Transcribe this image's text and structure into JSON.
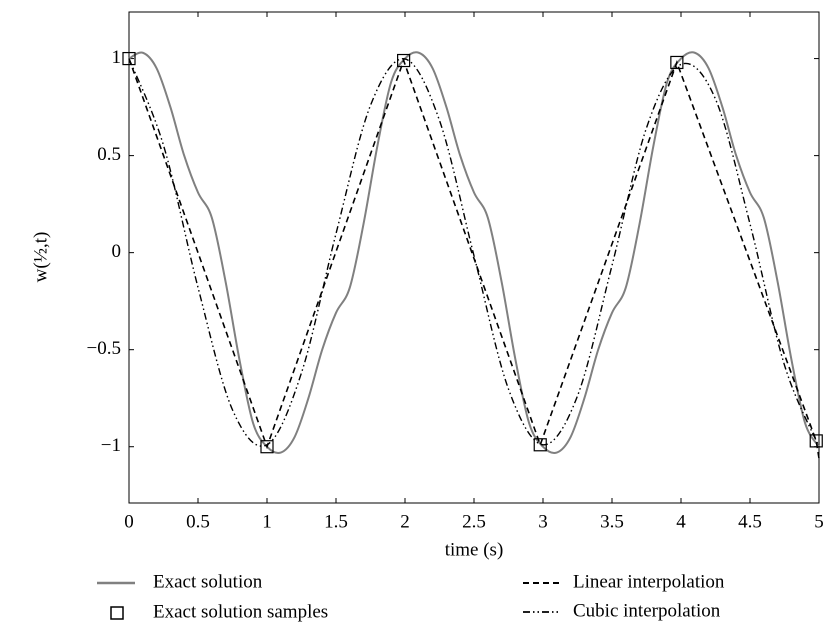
{
  "chart_data": {
    "type": "line",
    "x_label": "time (s)",
    "y_label": "w(½,t)",
    "xlim": [
      0,
      5
    ],
    "ylim": [
      -1.29,
      1.24
    ],
    "xticks": [
      0,
      0.5,
      1,
      1.5,
      2,
      2.5,
      3,
      3.5,
      4,
      4.5,
      5
    ],
    "yticks": [
      {
        "value": -1,
        "label": "−1"
      },
      {
        "value": -0.5,
        "label": "−0.5"
      },
      0,
      0.5,
      1
    ],
    "series": [
      {
        "name": "Exact solution",
        "color": "#808080",
        "style": "solid",
        "x": [
          0,
          0.1,
          0.2,
          0.3,
          0.4,
          0.5,
          0.6,
          0.7,
          0.8,
          0.9,
          1,
          1.1,
          1.2,
          1.3,
          1.4,
          1.5,
          1.6,
          1.7,
          1.8,
          1.9,
          2,
          2.1,
          2.2,
          2.3,
          2.4,
          2.5,
          2.6,
          2.7,
          2.8,
          2.9,
          3,
          3.1,
          3.2,
          3.3,
          3.4,
          3.5,
          3.6,
          3.7,
          3.8,
          3.9,
          4,
          4.1,
          4.2,
          4.3,
          4.4,
          4.5,
          4.6,
          4.7,
          4.8,
          4.9,
          5
        ],
        "values": [
          1.0,
          1.03,
          0.95,
          0.75,
          0.5,
          0.31,
          0.18,
          -0.15,
          -0.55,
          -0.88,
          -1.0,
          -1.03,
          -0.95,
          -0.75,
          -0.5,
          -0.31,
          -0.18,
          0.15,
          0.55,
          0.88,
          1.0,
          1.03,
          0.95,
          0.75,
          0.5,
          0.31,
          0.18,
          -0.15,
          -0.55,
          -0.88,
          -1.0,
          -1.03,
          -0.95,
          -0.75,
          -0.5,
          -0.31,
          -0.18,
          0.15,
          0.55,
          0.88,
          1.0,
          1.03,
          0.95,
          0.75,
          0.5,
          0.31,
          0.18,
          -0.15,
          -0.55,
          -0.88,
          -1.0
        ]
      },
      {
        "name": "Exact solution samples",
        "color": "#000000",
        "style": "markers",
        "x": [
          0,
          1,
          1.99,
          2.98,
          3.97,
          4.98
        ],
        "values": [
          1.0,
          -1.0,
          0.99,
          -0.99,
          0.98,
          -0.97
        ]
      },
      {
        "name": "Linear interpolation",
        "color": "#000000",
        "style": "dashed",
        "x": [
          0,
          1,
          1.99,
          2.98,
          3.97,
          4.98,
          5
        ],
        "values": [
          1.0,
          -1.0,
          0.99,
          -0.99,
          0.98,
          -0.97,
          -1.06
        ]
      },
      {
        "name": "Cubic interpolation",
        "color": "#000000",
        "style": "dashdot",
        "x": [
          0,
          0.25,
          0.5,
          0.75,
          1,
          1.25,
          1.5,
          1.75,
          2,
          2.25,
          2.5,
          2.75,
          3,
          3.25,
          3.5,
          3.75,
          4,
          4.25,
          4.5,
          4.75,
          5
        ],
        "values": [
          1.0,
          0.553,
          -0.179,
          -0.81,
          -0.99,
          -0.619,
          0.098,
          0.759,
          0.998,
          0.681,
          -0.016,
          -0.703,
          -0.99,
          -0.738,
          -0.066,
          0.643,
          0.97,
          0.791,
          0.148,
          -0.58,
          -1.0
        ]
      }
    ]
  }
}
